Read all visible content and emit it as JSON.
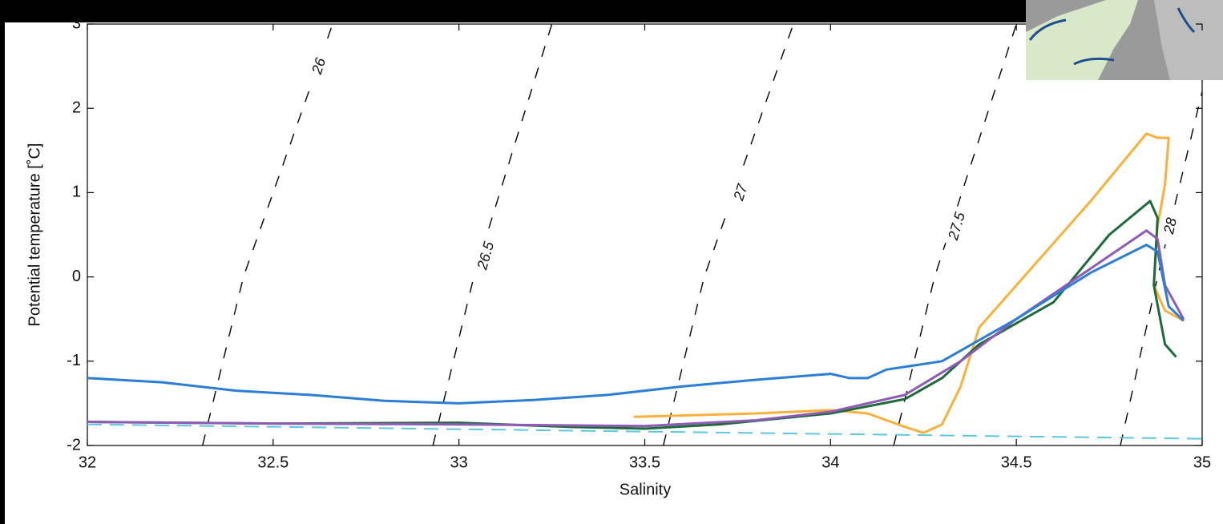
{
  "chart_data": {
    "type": "line",
    "x_label": "Salinity",
    "y_label": "Potential temperature [˚C]",
    "xlim": [
      32,
      35
    ],
    "ylim": [
      -2,
      3
    ],
    "xticks": [
      32,
      32.5,
      33,
      33.5,
      34,
      34.5,
      35
    ],
    "yticks": [
      -2,
      -1,
      0,
      1,
      2,
      3
    ],
    "series": [
      {
        "color": "#5bc8e0",
        "dash": true,
        "x": [
          32,
          35
        ],
        "values": [
          -1.75,
          -1.92
        ]
      },
      {
        "color": "#fbb03b",
        "x": [
          33.47,
          33.8,
          34.0,
          34.1,
          34.2,
          34.25,
          34.3,
          34.35,
          34.4,
          34.5,
          34.7,
          34.85,
          34.88,
          34.91,
          34.9,
          34.88,
          34.87,
          34.9,
          34.95
        ],
        "values": [
          -1.66,
          -1.62,
          -1.58,
          -1.62,
          -1.78,
          -1.85,
          -1.75,
          -1.3,
          -0.6,
          -0.1,
          0.9,
          1.7,
          1.65,
          1.65,
          1.1,
          0.6,
          -0.1,
          -0.4,
          -0.52
        ]
      },
      {
        "color": "#1e6b3a",
        "x": [
          32,
          32.5,
          33,
          33.3,
          33.5,
          33.7,
          34,
          34.2,
          34.3,
          34.4,
          34.6,
          34.75,
          34.86,
          34.88,
          34.87,
          34.9,
          34.93
        ],
        "values": [
          -1.72,
          -1.74,
          -1.73,
          -1.78,
          -1.8,
          -1.75,
          -1.62,
          -1.45,
          -1.2,
          -0.8,
          -0.3,
          0.5,
          0.9,
          0.7,
          -0.1,
          -0.8,
          -0.95
        ]
      },
      {
        "color": "#8e5bb5",
        "x": [
          32,
          32.5,
          33,
          33.5,
          33.8,
          34,
          34.2,
          34.35,
          34.5,
          34.7,
          34.85,
          34.88,
          34.9,
          34.95
        ],
        "values": [
          -1.72,
          -1.74,
          -1.75,
          -1.77,
          -1.7,
          -1.6,
          -1.4,
          -1.0,
          -0.5,
          0.1,
          0.55,
          0.45,
          -0.1,
          -0.5
        ]
      },
      {
        "color": "#2a7fd4",
        "x": [
          32,
          32.2,
          32.4,
          32.6,
          32.8,
          33,
          33.2,
          33.4,
          33.6,
          33.8,
          34,
          34.05,
          34.1,
          34.15,
          34.3,
          34.5,
          34.7,
          34.85,
          34.88,
          34.91,
          34.95
        ],
        "values": [
          -1.2,
          -1.25,
          -1.35,
          -1.4,
          -1.47,
          -1.5,
          -1.46,
          -1.4,
          -1.3,
          -1.22,
          -1.15,
          -1.2,
          -1.2,
          -1.1,
          -1.0,
          -0.5,
          0.05,
          0.38,
          0.3,
          -0.35,
          -0.52
        ]
      }
    ],
    "contours": [
      {
        "label": "26",
        "x": [
          32.31,
          32.42,
          32.66
        ],
        "values": [
          -2,
          0,
          3
        ]
      },
      {
        "label": "26.5",
        "x": [
          32.93,
          33.04,
          33.25
        ],
        "values": [
          -2,
          0,
          3
        ]
      },
      {
        "label": "27",
        "x": [
          33.55,
          33.66,
          33.9
        ],
        "values": [
          -2,
          0,
          3
        ]
      },
      {
        "label": "27.5",
        "x": [
          34.17,
          34.28,
          34.5
        ],
        "values": [
          -2,
          0,
          3
        ]
      },
      {
        "label": "28",
        "x": [
          34.78,
          34.88,
          35.0
        ],
        "values": [
          -2,
          0,
          2.2
        ]
      }
    ]
  }
}
